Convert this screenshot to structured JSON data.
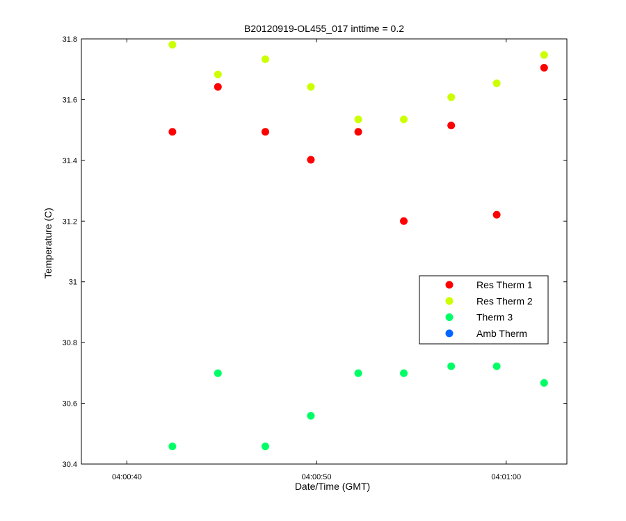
{
  "chart_data": {
    "type": "scatter",
    "title": "B20120919-OL455_017 inttime = 0.2",
    "xlabel": "Date/Time (GMT)",
    "ylabel": "Temperature (C)",
    "xlim": [
      "04:00:37.6",
      "04:01:03.2"
    ],
    "ylim": [
      30.4,
      31.8
    ],
    "x_ticks": [
      "04:00:40",
      "04:00:50",
      "04:01:00"
    ],
    "y_ticks": [
      "30.4",
      "30.6",
      "30.8",
      "31",
      "31.2",
      "31.4",
      "31.6",
      "31.8"
    ],
    "grid": false,
    "legend_position": "right",
    "x": [
      "04:00:42.4",
      "04:00:44.8",
      "04:00:47.3",
      "04:00:49.7",
      "04:00:52.2",
      "04:00:54.6",
      "04:00:57.1",
      "04:00:59.5",
      "04:01:02.0"
    ],
    "series": [
      {
        "name": "Res Therm 1",
        "color": "#ff0000",
        "values": [
          31.494,
          31.642,
          31.494,
          31.402,
          31.494,
          31.2,
          31.515,
          31.221,
          31.705
        ]
      },
      {
        "name": "Res Therm 2",
        "color": "#ccff00",
        "values": [
          31.781,
          31.683,
          31.733,
          31.642,
          31.535,
          31.535,
          31.608,
          31.654,
          31.747
        ]
      },
      {
        "name": "Therm 3",
        "color": "#00ff66",
        "values": [
          30.458,
          30.699,
          30.458,
          30.559,
          30.699,
          30.699,
          30.722,
          30.722,
          30.667
        ]
      },
      {
        "name": "Amb Therm",
        "color": "#0066ff",
        "values": []
      }
    ]
  }
}
